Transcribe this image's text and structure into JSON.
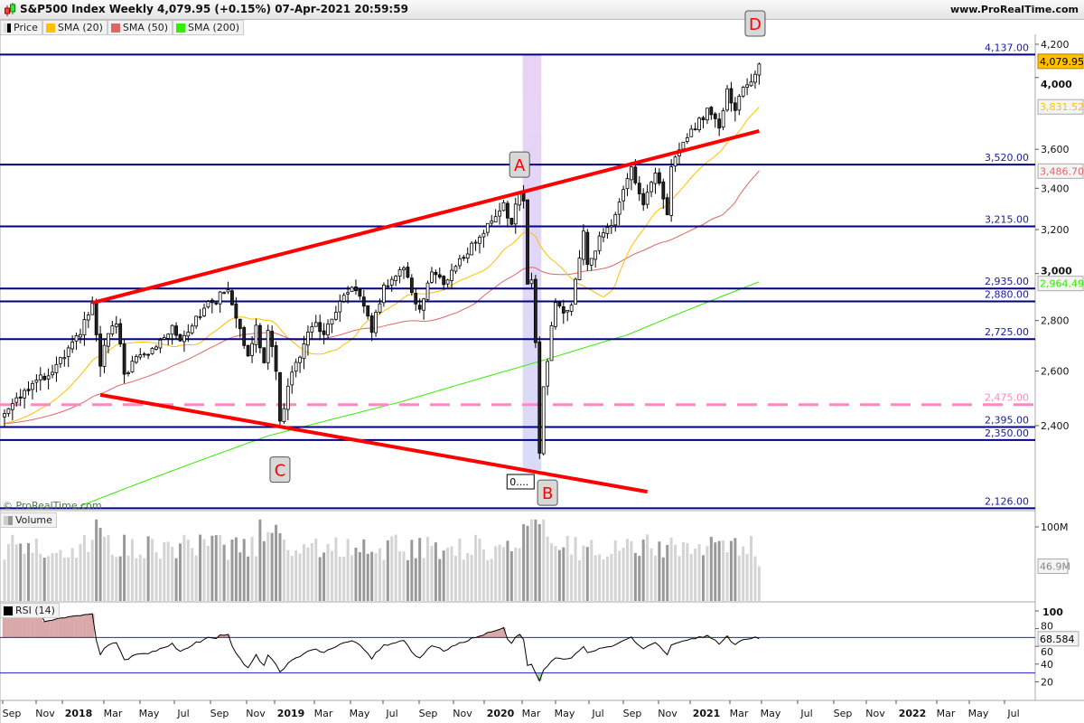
{
  "header": {
    "title": "S&P500 Index Weekly 4,079.95 (+0.15%) 07-Apr-2021 20:59:59",
    "site": "www.ProRealTime.com",
    "watermark": "© ProRealTime.com"
  },
  "legend": [
    {
      "label": "Price",
      "color": "#000000"
    },
    {
      "label": "SMA (20)",
      "color": "#ffc000"
    },
    {
      "label": "SMA (50)",
      "color": "#e06666"
    },
    {
      "label": "SMA (200)",
      "color": "#33ee00"
    }
  ],
  "volume_panel": {
    "label": "Volume",
    "last": "46.9M",
    "ticks": [
      "100M"
    ]
  },
  "rsi_panel": {
    "label": "RSI (14)",
    "last": "68.584",
    "ticks": [
      "100",
      "80",
      "60",
      "40",
      "20"
    ],
    "bands": [
      70,
      30
    ]
  },
  "chart_data": {
    "type": "candlestick",
    "title": "S&P500 Index Weekly",
    "scale": "log",
    "start_date": "2017-08-25",
    "ylim": [
      2100,
      4250
    ],
    "y_ticks": [
      "4,200",
      "4,000",
      "3,600",
      "3,400",
      "3,200",
      "3,000",
      "2,800",
      "2,600",
      "2,400"
    ],
    "y_tick_values": [
      4200,
      4000,
      3600,
      3400,
      3200,
      3000,
      2800,
      2600,
      2400
    ],
    "x_ticks": [
      "Sep",
      "Nov",
      "2018",
      "Mar",
      "May",
      "Jul",
      "Sep",
      "Nov",
      "2019",
      "Mar",
      "May",
      "Jul",
      "Sep",
      "Nov",
      "2020",
      "Mar",
      "May",
      "Jul",
      "Sep",
      "Nov",
      "2021",
      "Mar",
      "May",
      "Jul",
      "Sep",
      "Nov",
      "2022",
      "Mar",
      "May",
      "Jul"
    ],
    "weekly_close_anchors": [
      [
        "2017-08-25",
        2443
      ],
      [
        "2017-09-15",
        2500
      ],
      [
        "2017-10-13",
        2553
      ],
      [
        "2017-11-10",
        2582
      ],
      [
        "2017-12-08",
        2652
      ],
      [
        "2018-01-05",
        2743
      ],
      [
        "2018-01-26",
        2873
      ],
      [
        "2018-02-09",
        2619
      ],
      [
        "2018-02-23",
        2747
      ],
      [
        "2018-03-09",
        2786
      ],
      [
        "2018-03-23",
        2588
      ],
      [
        "2018-04-13",
        2656
      ],
      [
        "2018-05-04",
        2663
      ],
      [
        "2018-05-25",
        2721
      ],
      [
        "2018-06-15",
        2780
      ],
      [
        "2018-06-29",
        2718
      ],
      [
        "2018-07-27",
        2818
      ],
      [
        "2018-08-24",
        2875
      ],
      [
        "2018-09-21",
        2930
      ],
      [
        "2018-10-12",
        2767
      ],
      [
        "2018-10-26",
        2658
      ],
      [
        "2018-11-09",
        2781
      ],
      [
        "2018-11-23",
        2632
      ],
      [
        "2018-11-30",
        2760
      ],
      [
        "2018-12-14",
        2599
      ],
      [
        "2018-12-21",
        2416
      ],
      [
        "2019-01-11",
        2596
      ],
      [
        "2019-02-01",
        2706
      ],
      [
        "2019-02-22",
        2792
      ],
      [
        "2019-03-08",
        2743
      ],
      [
        "2019-03-29",
        2834
      ],
      [
        "2019-04-26",
        2940
      ],
      [
        "2019-05-17",
        2860
      ],
      [
        "2019-05-31",
        2752
      ],
      [
        "2019-06-21",
        2950
      ],
      [
        "2019-07-26",
        3025
      ],
      [
        "2019-08-09",
        2918
      ],
      [
        "2019-08-23",
        2847
      ],
      [
        "2019-09-13",
        3007
      ],
      [
        "2019-10-04",
        2952
      ],
      [
        "2019-11-01",
        3066
      ],
      [
        "2019-11-29",
        3141
      ],
      [
        "2019-12-27",
        3240
      ],
      [
        "2020-01-17",
        3329
      ],
      [
        "2020-01-31",
        3225
      ],
      [
        "2020-02-14",
        3380
      ],
      [
        "2020-02-21",
        3337
      ],
      [
        "2020-02-28",
        2954
      ],
      [
        "2020-03-06",
        2972
      ],
      [
        "2020-03-13",
        2711
      ],
      [
        "2020-03-20",
        2305
      ],
      [
        "2020-03-27",
        2541
      ],
      [
        "2020-04-17",
        2875
      ],
      [
        "2020-05-01",
        2831
      ],
      [
        "2020-05-15",
        2864
      ],
      [
        "2020-06-05",
        3193
      ],
      [
        "2020-06-12",
        3041
      ],
      [
        "2020-07-10",
        3185
      ],
      [
        "2020-07-31",
        3271
      ],
      [
        "2020-08-28",
        3508
      ],
      [
        "2020-09-04",
        3427
      ],
      [
        "2020-09-18",
        3319
      ],
      [
        "2020-10-09",
        3477
      ],
      [
        "2020-10-30",
        3270
      ],
      [
        "2020-11-06",
        3509
      ],
      [
        "2020-11-27",
        3638
      ],
      [
        "2020-12-18",
        3709
      ],
      [
        "2021-01-08",
        3824
      ],
      [
        "2021-01-29",
        3714
      ],
      [
        "2021-02-12",
        3934
      ],
      [
        "2021-02-26",
        3811
      ],
      [
        "2021-03-12",
        3943
      ],
      [
        "2021-03-26",
        3974
      ],
      [
        "2021-04-02",
        4019
      ],
      [
        "2021-04-09",
        4080
      ]
    ],
    "sma200_anchors": [
      [
        "2018-01-05",
        2133
      ],
      [
        "2018-11-30",
        2364
      ],
      [
        "2019-07-19",
        2484
      ],
      [
        "2020-03-20",
        2637
      ],
      [
        "2020-08-21",
        2742
      ],
      [
        "2021-04-09",
        2964
      ]
    ],
    "last_values": {
      "price": "4,079.95",
      "sma20": "3,831.52",
      "sma50": "3,486.70",
      "sma200": "2,964.49"
    },
    "last_value_colors": {
      "price": "#ffc000",
      "sma20": "#ffc000",
      "sma50": "#e06666",
      "sma200": "#33ee00"
    },
    "horizontal_levels": [
      {
        "value": 4137,
        "label": "4,137.00",
        "color": "#000080",
        "style": "solid"
      },
      {
        "value": 3520,
        "label": "3,520.00",
        "color": "#000080",
        "style": "solid"
      },
      {
        "value": 3215,
        "label": "3,215.00",
        "color": "#000080",
        "style": "solid"
      },
      {
        "value": 2935,
        "label": "2,935.00",
        "color": "#000080",
        "style": "solid"
      },
      {
        "value": 2880,
        "label": "2,880.00",
        "color": "#000080",
        "style": "solid"
      },
      {
        "value": 2725,
        "label": "2,725.00",
        "color": "#000080",
        "style": "solid"
      },
      {
        "value": 2475,
        "label": "2,475.00",
        "color": "#ff88c0",
        "style": "dashed"
      },
      {
        "value": 2395,
        "label": "2,395.00",
        "color": "#000080",
        "style": "solid"
      },
      {
        "value": 2350,
        "label": "2,350.00",
        "color": "#000080",
        "style": "solid"
      },
      {
        "value": 2126,
        "label": "2,126.00",
        "color": "#000080",
        "style": "solid"
      }
    ],
    "trend_lines": [
      {
        "from": [
          "2018-01-26",
          2874
        ],
        "to": [
          "2021-04-09",
          3698
        ],
        "color": "#ff0000"
      },
      {
        "from": [
          "2018-02-09",
          2511
        ],
        "to": [
          "2020-09-25",
          2178
        ],
        "color": "#ff0000"
      }
    ],
    "highlight_period": [
      "2020-02-21",
      "2020-03-20"
    ],
    "annotations": [
      {
        "text": "A",
        "date": "2020-02-14",
        "price": 3520
      },
      {
        "text": "B",
        "date": "2020-04-03",
        "price": 2175
      },
      {
        "text": "C",
        "date": "2018-12-21",
        "price": 2250
      },
      {
        "text": "D",
        "date": "2021-04-02",
        "price": 4330
      }
    ],
    "small_label": "0...."
  }
}
